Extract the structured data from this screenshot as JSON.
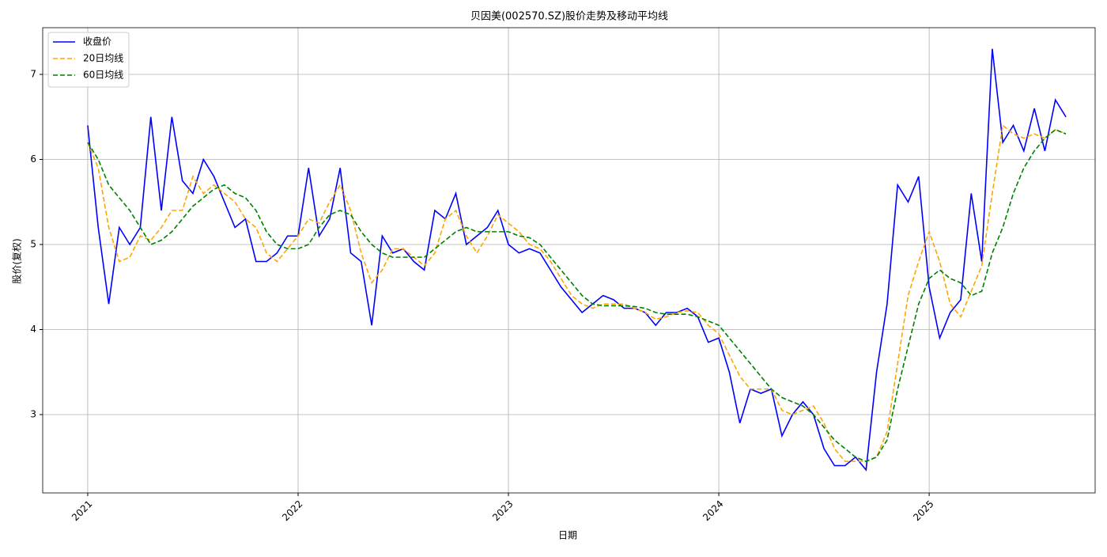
{
  "chart_data": {
    "type": "line",
    "title": "贝因美(002570.SZ)股价走势及移动平均线",
    "xlabel": "日期",
    "ylabel": "股价(复权)",
    "x": [
      2021,
      2021.05,
      2021.1,
      2021.15,
      2021.2,
      2021.25,
      2021.3,
      2021.35,
      2021.4,
      2021.45,
      2021.5,
      2021.55,
      2021.6,
      2021.65,
      2021.7,
      2021.75,
      2021.8,
      2021.85,
      2021.9,
      2021.95,
      2022,
      2022.05,
      2022.1,
      2022.15,
      2022.2,
      2022.25,
      2022.3,
      2022.35,
      2022.4,
      2022.45,
      2022.5,
      2022.55,
      2022.6,
      2022.65,
      2022.7,
      2022.75,
      2022.8,
      2022.85,
      2022.9,
      2022.95,
      2023,
      2023.05,
      2023.1,
      2023.15,
      2023.2,
      2023.25,
      2023.3,
      2023.35,
      2023.4,
      2023.45,
      2023.5,
      2023.55,
      2023.6,
      2023.65,
      2023.7,
      2023.75,
      2023.8,
      2023.85,
      2023.9,
      2023.95,
      2024,
      2024.05,
      2024.1,
      2024.15,
      2024.2,
      2024.25,
      2024.3,
      2024.35,
      2024.4,
      2024.45,
      2024.5,
      2024.55,
      2024.6,
      2024.65,
      2024.7,
      2024.75,
      2024.8,
      2024.85,
      2024.9,
      2024.95,
      2025,
      2025.05,
      2025.1,
      2025.15,
      2025.2,
      2025.25,
      2025.3,
      2025.35,
      2025.4,
      2025.45,
      2025.5,
      2025.55,
      2025.6,
      2025.65
    ],
    "series": [
      {
        "name": "收盘价",
        "color": "#0000ff",
        "dash": "solid",
        "values": [
          6.4,
          5.2,
          4.3,
          5.2,
          5.0,
          5.2,
          6.5,
          5.4,
          6.5,
          5.75,
          5.6,
          6.0,
          5.8,
          5.5,
          5.2,
          5.3,
          4.8,
          4.8,
          4.9,
          5.1,
          5.1,
          5.9,
          5.1,
          5.3,
          5.9,
          4.9,
          4.8,
          4.05,
          5.1,
          4.9,
          4.95,
          4.8,
          4.7,
          5.4,
          5.3,
          5.6,
          5.0,
          5.1,
          5.2,
          5.4,
          5.0,
          4.9,
          4.95,
          4.9,
          4.7,
          4.5,
          4.35,
          4.2,
          4.3,
          4.4,
          4.35,
          4.25,
          4.25,
          4.2,
          4.05,
          4.2,
          4.2,
          4.25,
          4.15,
          3.85,
          3.9,
          3.5,
          2.9,
          3.3,
          3.25,
          3.3,
          2.75,
          3.0,
          3.15,
          3.0,
          2.6,
          2.4,
          2.4,
          2.5,
          2.35,
          3.5,
          4.3,
          5.7,
          5.5,
          5.8,
          4.5,
          3.9,
          4.2,
          4.35,
          5.6,
          4.8,
          7.3,
          6.2,
          6.4,
          6.1,
          6.6,
          6.1,
          6.7,
          6.5
        ]
      },
      {
        "name": "20日均线",
        "color": "#ffa500",
        "dash": "dashed",
        "values": [
          6.2,
          5.9,
          5.2,
          4.8,
          4.85,
          5.1,
          5.05,
          5.2,
          5.4,
          5.4,
          5.8,
          5.6,
          5.7,
          5.6,
          5.5,
          5.3,
          5.2,
          4.9,
          4.8,
          4.95,
          5.1,
          5.3,
          5.25,
          5.5,
          5.7,
          5.4,
          4.9,
          4.55,
          4.7,
          4.95,
          4.95,
          4.85,
          4.75,
          4.9,
          5.3,
          5.4,
          5.1,
          4.9,
          5.1,
          5.35,
          5.25,
          5.15,
          5.0,
          4.95,
          4.8,
          4.6,
          4.4,
          4.3,
          4.25,
          4.3,
          4.3,
          4.3,
          4.25,
          4.2,
          4.12,
          4.15,
          4.2,
          4.22,
          4.2,
          4.05,
          3.95,
          3.7,
          3.45,
          3.3,
          3.3,
          3.3,
          3.05,
          3.0,
          3.05,
          3.1,
          2.9,
          2.6,
          2.45,
          2.45,
          2.45,
          2.5,
          2.8,
          3.6,
          4.4,
          4.8,
          5.15,
          4.8,
          4.3,
          4.15,
          4.45,
          4.75,
          5.6,
          6.4,
          6.3,
          6.25,
          6.3,
          6.25,
          6.35,
          6.3
        ]
      },
      {
        "name": "60日均线",
        "color": "#008000",
        "dash": "dashed",
        "values": [
          6.2,
          6.0,
          5.7,
          5.55,
          5.4,
          5.2,
          5.0,
          5.05,
          5.15,
          5.3,
          5.45,
          5.55,
          5.65,
          5.7,
          5.6,
          5.55,
          5.4,
          5.15,
          5.0,
          4.95,
          4.95,
          5.0,
          5.2,
          5.35,
          5.4,
          5.35,
          5.15,
          5.0,
          4.9,
          4.85,
          4.85,
          4.85,
          4.85,
          4.95,
          5.05,
          5.15,
          5.2,
          5.15,
          5.15,
          5.15,
          5.15,
          5.1,
          5.08,
          5.0,
          4.85,
          4.7,
          4.55,
          4.4,
          4.3,
          4.28,
          4.28,
          4.28,
          4.27,
          4.25,
          4.2,
          4.18,
          4.18,
          4.18,
          4.15,
          4.1,
          4.05,
          3.9,
          3.75,
          3.6,
          3.45,
          3.3,
          3.2,
          3.15,
          3.1,
          3.0,
          2.85,
          2.7,
          2.6,
          2.5,
          2.45,
          2.5,
          2.7,
          3.3,
          3.8,
          4.3,
          4.6,
          4.7,
          4.6,
          4.55,
          4.4,
          4.45,
          4.9,
          5.2,
          5.6,
          5.9,
          6.1,
          6.25,
          6.35,
          6.3
        ]
      }
    ],
    "xlim": [
      2020.786,
      2025.789
    ],
    "xticks": [
      2021,
      2022,
      2023,
      2024,
      2025
    ],
    "ylim": [
      2.079,
      7.549
    ],
    "yticks": [
      3,
      4,
      5,
      6,
      7
    ],
    "grid": true,
    "legend": "upper left"
  }
}
